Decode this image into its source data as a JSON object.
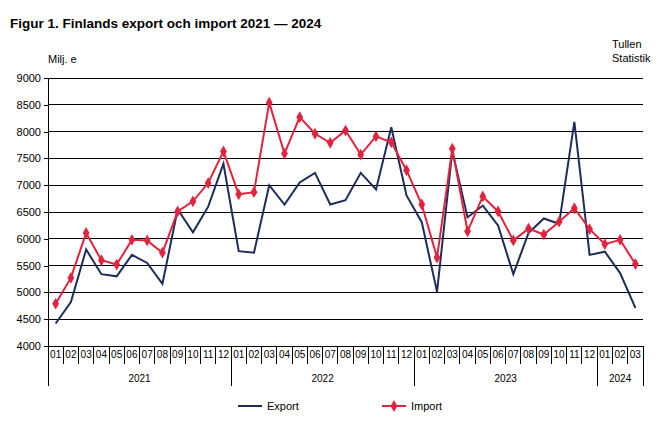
{
  "chart_data": {
    "type": "line",
    "title": "Figur 1. Finlands export och import 2021 — 2024",
    "y_label": "Milj. e",
    "source": [
      "Tullen",
      "Statistik"
    ],
    "categories": [
      "01",
      "02",
      "03",
      "04",
      "05",
      "06",
      "07",
      "08",
      "09",
      "10",
      "11",
      "12",
      "01",
      "02",
      "03",
      "04",
      "05",
      "06",
      "07",
      "08",
      "09",
      "10",
      "11",
      "12",
      "01",
      "02",
      "03",
      "04",
      "05",
      "06",
      "07",
      "08",
      "09",
      "10",
      "11",
      "12",
      "01",
      "02",
      "03"
    ],
    "groups": [
      {
        "label": "2021",
        "count": 12
      },
      {
        "label": "2022",
        "count": 12
      },
      {
        "label": "2023",
        "count": 12
      },
      {
        "label": "2024",
        "count": 3
      }
    ],
    "series": [
      {
        "name": "Export",
        "color": "#1f2d5c",
        "marker": "none",
        "line_style": "solid",
        "values": [
          4420,
          4820,
          5800,
          5340,
          5300,
          5700,
          5550,
          5160,
          6550,
          6120,
          6600,
          7400,
          5770,
          5740,
          7000,
          6640,
          7050,
          7230,
          6640,
          6720,
          7230,
          6920,
          8080,
          6810,
          6310,
          5010,
          7640,
          6400,
          6620,
          6250,
          5340,
          6110,
          6380,
          6280,
          8180,
          5700,
          5760,
          5360,
          4710
        ]
      },
      {
        "name": "Import",
        "color": "#e0243f",
        "marker": "diamond",
        "line_style": "solid",
        "values": [
          4790,
          5270,
          6110,
          5600,
          5520,
          5980,
          5970,
          5740,
          6510,
          6700,
          7040,
          7630,
          6830,
          6870,
          8540,
          7590,
          8270,
          7960,
          7790,
          8020,
          7570,
          7910,
          7800,
          7280,
          6640,
          5650,
          7680,
          6140,
          6790,
          6510,
          5970,
          6190,
          6080,
          6320,
          6570,
          6180,
          5900,
          5980,
          5530
        ]
      }
    ],
    "ylim": [
      4000,
      9000
    ],
    "yticks": [
      4000,
      4500,
      5000,
      5500,
      6000,
      6500,
      7000,
      7500,
      8000,
      8500,
      9000
    ],
    "grid": true,
    "legend": "bottom"
  }
}
